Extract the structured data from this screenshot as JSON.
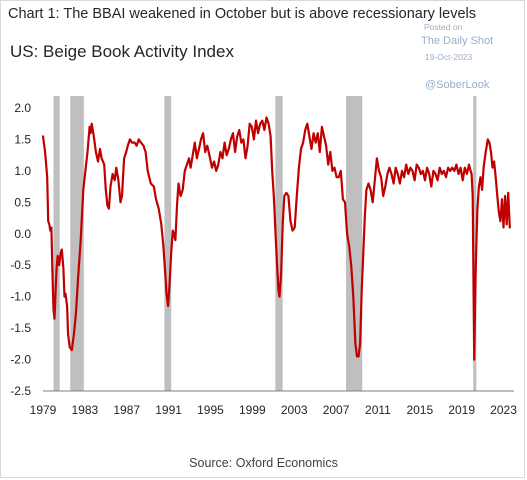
{
  "header": {
    "title": "Chart 1: The BBAI weakened in October but is above recessionary levels"
  },
  "watermark": {
    "posted": "Posted on",
    "site": "The Daily Shot",
    "date": "19-Oct-2023",
    "handle": "@SoberLook"
  },
  "chart_data": {
    "type": "line",
    "title": "US: Beige Book Activity Index",
    "source": "Source: Oxford Economics",
    "xlabel": "",
    "ylabel": "",
    "xlim": [
      1979,
      2024
    ],
    "ylim": [
      -2.5,
      2.0
    ],
    "yticks": [
      2.0,
      1.5,
      1.0,
      0.5,
      0.0,
      -0.5,
      -1.0,
      -1.5,
      -2.0,
      -2.5
    ],
    "ytick_labels": [
      "2.0",
      "1.5",
      "1.0",
      "0.5",
      "0.0",
      "-0.5",
      "-1.0",
      "-1.5",
      "-2.0",
      "-2.5"
    ],
    "xticks": [
      1979,
      1983,
      1987,
      1991,
      1995,
      1999,
      2003,
      2007,
      2011,
      2015,
      2019,
      2023
    ],
    "xtick_labels": [
      "1979",
      "1983",
      "1987",
      "1991",
      "1995",
      "1999",
      "2003",
      "2007",
      "2011",
      "2015",
      "2019",
      "2023"
    ],
    "grid": false,
    "line_color": "#c00000",
    "recession_color": "#bfbfbf",
    "recessions": [
      [
        1980.0,
        1980.6
      ],
      [
        1981.6,
        1982.9
      ],
      [
        1990.6,
        1991.25
      ],
      [
        2001.2,
        2001.9
      ],
      [
        2007.95,
        2009.5
      ],
      [
        2020.1,
        2020.4
      ]
    ],
    "series": [
      {
        "values": [
          [
            1979.0,
            1.55
          ],
          [
            1979.2,
            1.3
          ],
          [
            1979.4,
            0.9
          ],
          [
            1979.5,
            0.2
          ],
          [
            1979.6,
            0.15
          ],
          [
            1979.7,
            0.05
          ],
          [
            1979.8,
            0.1
          ],
          [
            1979.9,
            -0.6
          ],
          [
            1980.0,
            -1.2
          ],
          [
            1980.1,
            -1.35
          ],
          [
            1980.2,
            -0.9
          ],
          [
            1980.3,
            -0.55
          ],
          [
            1980.4,
            -0.35
          ],
          [
            1980.55,
            -0.5
          ],
          [
            1980.7,
            -0.3
          ],
          [
            1980.8,
            -0.25
          ],
          [
            1980.95,
            -0.55
          ],
          [
            1981.05,
            -1.0
          ],
          [
            1981.15,
            -0.95
          ],
          [
            1981.3,
            -1.15
          ],
          [
            1981.4,
            -1.6
          ],
          [
            1981.55,
            -1.8
          ],
          [
            1981.75,
            -1.85
          ],
          [
            1981.95,
            -1.6
          ],
          [
            1982.15,
            -1.25
          ],
          [
            1982.35,
            -0.7
          ],
          [
            1982.6,
            -0.1
          ],
          [
            1982.85,
            0.7
          ],
          [
            1983.05,
            1.0
          ],
          [
            1983.25,
            1.3
          ],
          [
            1983.45,
            1.7
          ],
          [
            1983.55,
            1.6
          ],
          [
            1983.65,
            1.75
          ],
          [
            1983.85,
            1.55
          ],
          [
            1984.05,
            1.3
          ],
          [
            1984.25,
            1.15
          ],
          [
            1984.45,
            1.35
          ],
          [
            1984.6,
            1.2
          ],
          [
            1984.85,
            1.1
          ],
          [
            1985.0,
            0.7
          ],
          [
            1985.15,
            0.45
          ],
          [
            1985.3,
            0.4
          ],
          [
            1985.45,
            0.75
          ],
          [
            1985.65,
            0.95
          ],
          [
            1985.85,
            0.85
          ],
          [
            1986.0,
            1.05
          ],
          [
            1986.2,
            0.85
          ],
          [
            1986.4,
            0.5
          ],
          [
            1986.55,
            0.6
          ],
          [
            1986.75,
            1.2
          ],
          [
            1986.95,
            1.3
          ],
          [
            1987.1,
            1.4
          ],
          [
            1987.3,
            1.5
          ],
          [
            1987.5,
            1.45
          ],
          [
            1987.75,
            1.45
          ],
          [
            1987.95,
            1.4
          ],
          [
            1988.15,
            1.5
          ],
          [
            1988.35,
            1.45
          ],
          [
            1988.6,
            1.4
          ],
          [
            1988.8,
            1.3
          ],
          [
            1989.0,
            1.0
          ],
          [
            1989.3,
            0.8
          ],
          [
            1989.6,
            0.75
          ],
          [
            1989.8,
            0.55
          ],
          [
            1990.05,
            0.4
          ],
          [
            1990.3,
            0.15
          ],
          [
            1990.5,
            -0.2
          ],
          [
            1990.65,
            -0.55
          ],
          [
            1990.8,
            -0.95
          ],
          [
            1990.95,
            -1.15
          ],
          [
            1991.1,
            -0.8
          ],
          [
            1991.25,
            -0.3
          ],
          [
            1991.4,
            0.05
          ],
          [
            1991.5,
            0.0
          ],
          [
            1991.65,
            -0.1
          ],
          [
            1991.8,
            0.45
          ],
          [
            1991.95,
            0.8
          ],
          [
            1992.15,
            0.6
          ],
          [
            1992.35,
            0.7
          ],
          [
            1992.55,
            1.0
          ],
          [
            1992.75,
            1.1
          ],
          [
            1992.95,
            1.2
          ],
          [
            1993.1,
            1.05
          ],
          [
            1993.3,
            1.25
          ],
          [
            1993.5,
            1.45
          ],
          [
            1993.7,
            1.2
          ],
          [
            1993.9,
            1.35
          ],
          [
            1994.1,
            1.5
          ],
          [
            1994.3,
            1.6
          ],
          [
            1994.5,
            1.3
          ],
          [
            1994.7,
            1.4
          ],
          [
            1994.9,
            1.25
          ],
          [
            1995.15,
            1.05
          ],
          [
            1995.35,
            1.15
          ],
          [
            1995.55,
            1.0
          ],
          [
            1995.75,
            1.1
          ],
          [
            1995.95,
            1.3
          ],
          [
            1996.15,
            1.2
          ],
          [
            1996.35,
            1.45
          ],
          [
            1996.55,
            1.25
          ],
          [
            1996.75,
            1.35
          ],
          [
            1996.95,
            1.5
          ],
          [
            1997.15,
            1.6
          ],
          [
            1997.35,
            1.3
          ],
          [
            1997.55,
            1.55
          ],
          [
            1997.75,
            1.65
          ],
          [
            1997.95,
            1.45
          ],
          [
            1998.15,
            1.5
          ],
          [
            1998.35,
            1.2
          ],
          [
            1998.55,
            1.4
          ],
          [
            1998.75,
            1.75
          ],
          [
            1998.95,
            1.7
          ],
          [
            1999.15,
            1.5
          ],
          [
            1999.35,
            1.8
          ],
          [
            1999.55,
            1.6
          ],
          [
            1999.75,
            1.75
          ],
          [
            1999.95,
            1.8
          ],
          [
            2000.15,
            1.65
          ],
          [
            2000.35,
            1.85
          ],
          [
            2000.55,
            1.75
          ],
          [
            2000.75,
            1.55
          ],
          [
            2000.9,
            1.0
          ],
          [
            2001.05,
            0.6
          ],
          [
            2001.2,
            0.05
          ],
          [
            2001.35,
            -0.45
          ],
          [
            2001.5,
            -0.9
          ],
          [
            2001.6,
            -1.0
          ],
          [
            2001.75,
            -0.65
          ],
          [
            2001.9,
            0.15
          ],
          [
            2002.05,
            0.6
          ],
          [
            2002.25,
            0.65
          ],
          [
            2002.45,
            0.6
          ],
          [
            2002.65,
            0.2
          ],
          [
            2002.85,
            0.05
          ],
          [
            2003.05,
            0.1
          ],
          [
            2003.25,
            0.6
          ],
          [
            2003.45,
            1.05
          ],
          [
            2003.65,
            1.35
          ],
          [
            2003.85,
            1.45
          ],
          [
            2004.05,
            1.65
          ],
          [
            2004.25,
            1.75
          ],
          [
            2004.45,
            1.55
          ],
          [
            2004.65,
            1.35
          ],
          [
            2004.85,
            1.6
          ],
          [
            2005.05,
            1.45
          ],
          [
            2005.25,
            1.6
          ],
          [
            2005.45,
            1.3
          ],
          [
            2005.65,
            1.7
          ],
          [
            2005.85,
            1.55
          ],
          [
            2006.05,
            1.4
          ],
          [
            2006.25,
            1.1
          ],
          [
            2006.45,
            1.3
          ],
          [
            2006.65,
            1.0
          ],
          [
            2006.85,
            1.05
          ],
          [
            2007.05,
            0.9
          ],
          [
            2007.25,
            0.9
          ],
          [
            2007.45,
            1.0
          ],
          [
            2007.65,
            0.55
          ],
          [
            2007.85,
            0.5
          ],
          [
            2008.05,
            0.0
          ],
          [
            2008.25,
            -0.2
          ],
          [
            2008.45,
            -0.5
          ],
          [
            2008.65,
            -1.0
          ],
          [
            2008.85,
            -1.75
          ],
          [
            2009.0,
            -1.95
          ],
          [
            2009.15,
            -1.95
          ],
          [
            2009.3,
            -1.75
          ],
          [
            2009.45,
            -0.9
          ],
          [
            2009.6,
            -0.3
          ],
          [
            2009.75,
            0.3
          ],
          [
            2009.9,
            0.7
          ],
          [
            2010.1,
            0.8
          ],
          [
            2010.3,
            0.7
          ],
          [
            2010.5,
            0.5
          ],
          [
            2010.7,
            0.85
          ],
          [
            2010.9,
            1.2
          ],
          [
            2011.1,
            1.0
          ],
          [
            2011.3,
            0.9
          ],
          [
            2011.5,
            0.6
          ],
          [
            2011.7,
            0.75
          ],
          [
            2011.9,
            0.95
          ],
          [
            2012.1,
            1.05
          ],
          [
            2012.3,
            0.95
          ],
          [
            2012.5,
            0.8
          ],
          [
            2012.7,
            1.05
          ],
          [
            2012.9,
            0.95
          ],
          [
            2013.1,
            0.8
          ],
          [
            2013.3,
            1.0
          ],
          [
            2013.5,
            0.9
          ],
          [
            2013.7,
            1.1
          ],
          [
            2013.9,
            0.95
          ],
          [
            2014.1,
            1.05
          ],
          [
            2014.3,
            1.0
          ],
          [
            2014.5,
            0.85
          ],
          [
            2014.7,
            1.1
          ],
          [
            2014.9,
            1.05
          ],
          [
            2015.1,
            0.95
          ],
          [
            2015.3,
            1.0
          ],
          [
            2015.5,
            0.85
          ],
          [
            2015.7,
            1.05
          ],
          [
            2015.9,
            0.95
          ],
          [
            2016.1,
            0.75
          ],
          [
            2016.3,
            1.0
          ],
          [
            2016.5,
            0.95
          ],
          [
            2016.7,
            0.85
          ],
          [
            2016.9,
            1.05
          ],
          [
            2017.1,
            0.95
          ],
          [
            2017.3,
            1.0
          ],
          [
            2017.5,
            0.9
          ],
          [
            2017.7,
            1.05
          ],
          [
            2017.9,
            1.0
          ],
          [
            2018.1,
            1.05
          ],
          [
            2018.3,
            1.0
          ],
          [
            2018.5,
            1.1
          ],
          [
            2018.7,
            0.95
          ],
          [
            2018.9,
            1.05
          ],
          [
            2019.1,
            0.85
          ],
          [
            2019.3,
            1.05
          ],
          [
            2019.5,
            0.95
          ],
          [
            2019.7,
            1.1
          ],
          [
            2019.85,
            1.0
          ],
          [
            2019.95,
            0.95
          ],
          [
            2020.05,
            0.6
          ],
          [
            2020.2,
            -2.0
          ],
          [
            2020.35,
            -0.5
          ],
          [
            2020.5,
            0.4
          ],
          [
            2020.65,
            0.75
          ],
          [
            2020.8,
            0.9
          ],
          [
            2020.95,
            0.7
          ],
          [
            2021.1,
            1.05
          ],
          [
            2021.3,
            1.3
          ],
          [
            2021.5,
            1.5
          ],
          [
            2021.65,
            1.45
          ],
          [
            2021.8,
            1.3
          ],
          [
            2021.95,
            1.05
          ],
          [
            2022.1,
            1.15
          ],
          [
            2022.25,
            0.9
          ],
          [
            2022.4,
            0.6
          ],
          [
            2022.55,
            0.35
          ],
          [
            2022.7,
            0.2
          ],
          [
            2022.85,
            0.55
          ],
          [
            2023.0,
            0.1
          ],
          [
            2023.15,
            0.6
          ],
          [
            2023.3,
            0.15
          ],
          [
            2023.45,
            0.65
          ],
          [
            2023.6,
            0.1
          ]
        ]
      }
    ]
  }
}
